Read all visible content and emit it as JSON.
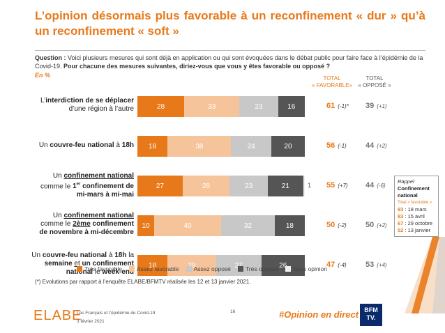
{
  "title": "L’opinion désormais plus favorable à un reconfinement « dur » qu’à un reconfinement « soft »",
  "question_label": "Question :",
  "question_text": "Voici plusieurs mesures qui sont déjà en application ou qui sont évoquées dans le débat public pour faire face à l’épidémie de la Covid-19.",
  "question_bold": "Pour chacune des mesures suivantes, diriez-vous que vous y êtes favorable ou opposé ?",
  "unit": "En %",
  "col_total_fav_1": "TOTAL",
  "col_total_fav_2": "« FAVORABLE»",
  "col_total_opp_1": "TOTAL",
  "col_total_opp_2": "« OPPOSÉ »",
  "rows": [
    {
      "label_html": "L’<b>interdiction de se déplacer</b><br>d’une région à l’autre"
    },
    {
      "label_html": "Un <b>couvre-feu national</b> à <b>18h</b>"
    },
    {
      "label_html": "Un <u><b>confinement national</b></u><br>comme le <b>1<sup>er</sup> confinement de</b><br><b>mi-mars à mi-mai</b>"
    },
    {
      "label_html": "Un <u><b>confinement national</b></u><br>comme le <u><b>2ème</b></u> <b>confinement</b><br><b>de novembre à mi-décembre</b>"
    },
    {
      "label_html": "Un <b>couvre-feu national</b> à <b>18h</b> la<br><b>semaine</b> <u>et</u> <b>un confinement</b><br><b>national</b> le <b>week-end</b>"
    }
  ],
  "totals": [
    {
      "fav": "61",
      "fav_ev": "(-1)*",
      "opp": "39",
      "opp_ev": "(+1)"
    },
    {
      "fav": "56",
      "fav_ev": "(-1)",
      "opp": "44",
      "opp_ev": "(+2)"
    },
    {
      "fav": "55",
      "fav_ev": "(+7)",
      "opp": "44",
      "opp_ev": "(-6)"
    },
    {
      "fav": "50",
      "fav_ev": "(-2)",
      "opp": "50",
      "opp_ev": "(+2)"
    },
    {
      "fav": "47",
      "fav_ev": "(-4)",
      "opp": "53",
      "opp_ev": "(+4)"
    }
  ],
  "outside_label": "1",
  "chart_data": {
    "type": "bar",
    "orientation": "horizontal-stacked",
    "unit": "%",
    "categories": [
      "L’interdiction de se déplacer d’une région à l’autre",
      "Un couvre-feu national à 18h",
      "Un confinement national comme le 1er confinement de mi-mars à mi-mai",
      "Un confinement national comme le 2ème confinement de novembre à mi-décembre",
      "Un couvre-feu national à 18h la semaine et un confinement national le week-end"
    ],
    "series": [
      {
        "name": "Très favorable",
        "color": "#e8791a",
        "values": [
          28,
          18,
          27,
          10,
          18
        ]
      },
      {
        "name": "Assez favorable",
        "color": "#f6c49a",
        "values": [
          33,
          38,
          28,
          40,
          29
        ]
      },
      {
        "name": "Assez opposé",
        "color": "#c8c8c8",
        "values": [
          23,
          24,
          23,
          32,
          27
        ]
      },
      {
        "name": "Très opposé",
        "color": "#555555",
        "values": [
          16,
          20,
          21,
          18,
          26
        ]
      },
      {
        "name": "Sans opinion",
        "color": "#f0f0f0",
        "values": [
          0,
          0,
          1,
          0,
          0
        ]
      }
    ],
    "xlim": [
      0,
      100
    ],
    "legend": "bottom"
  },
  "footnote": "(*) Evolutions par rapport à l’enquête ELABE/BFMTV réalisée les 12 et 13 janvier 2021.",
  "rappel": {
    "title": "Rappel",
    "heading": "Confinement national",
    "sub": "Total « favorable »",
    "items": [
      {
        "value": "93",
        "date": " : 18 mars"
      },
      {
        "value": "83",
        "date": " : 15 avril"
      },
      {
        "value": "67",
        "date": " : 29 octobre"
      },
      {
        "value": "52",
        "date": " : 13 janvier"
      }
    ]
  },
  "footer": {
    "logo": "ELABE",
    "line1": "Les Français et l’épidémie de Covid-19",
    "line2": "3 février 2021",
    "page": "16",
    "hashtag": "#Opinion en direct",
    "bfm_line1": "BFM",
    "bfm_line2": "TV."
  }
}
